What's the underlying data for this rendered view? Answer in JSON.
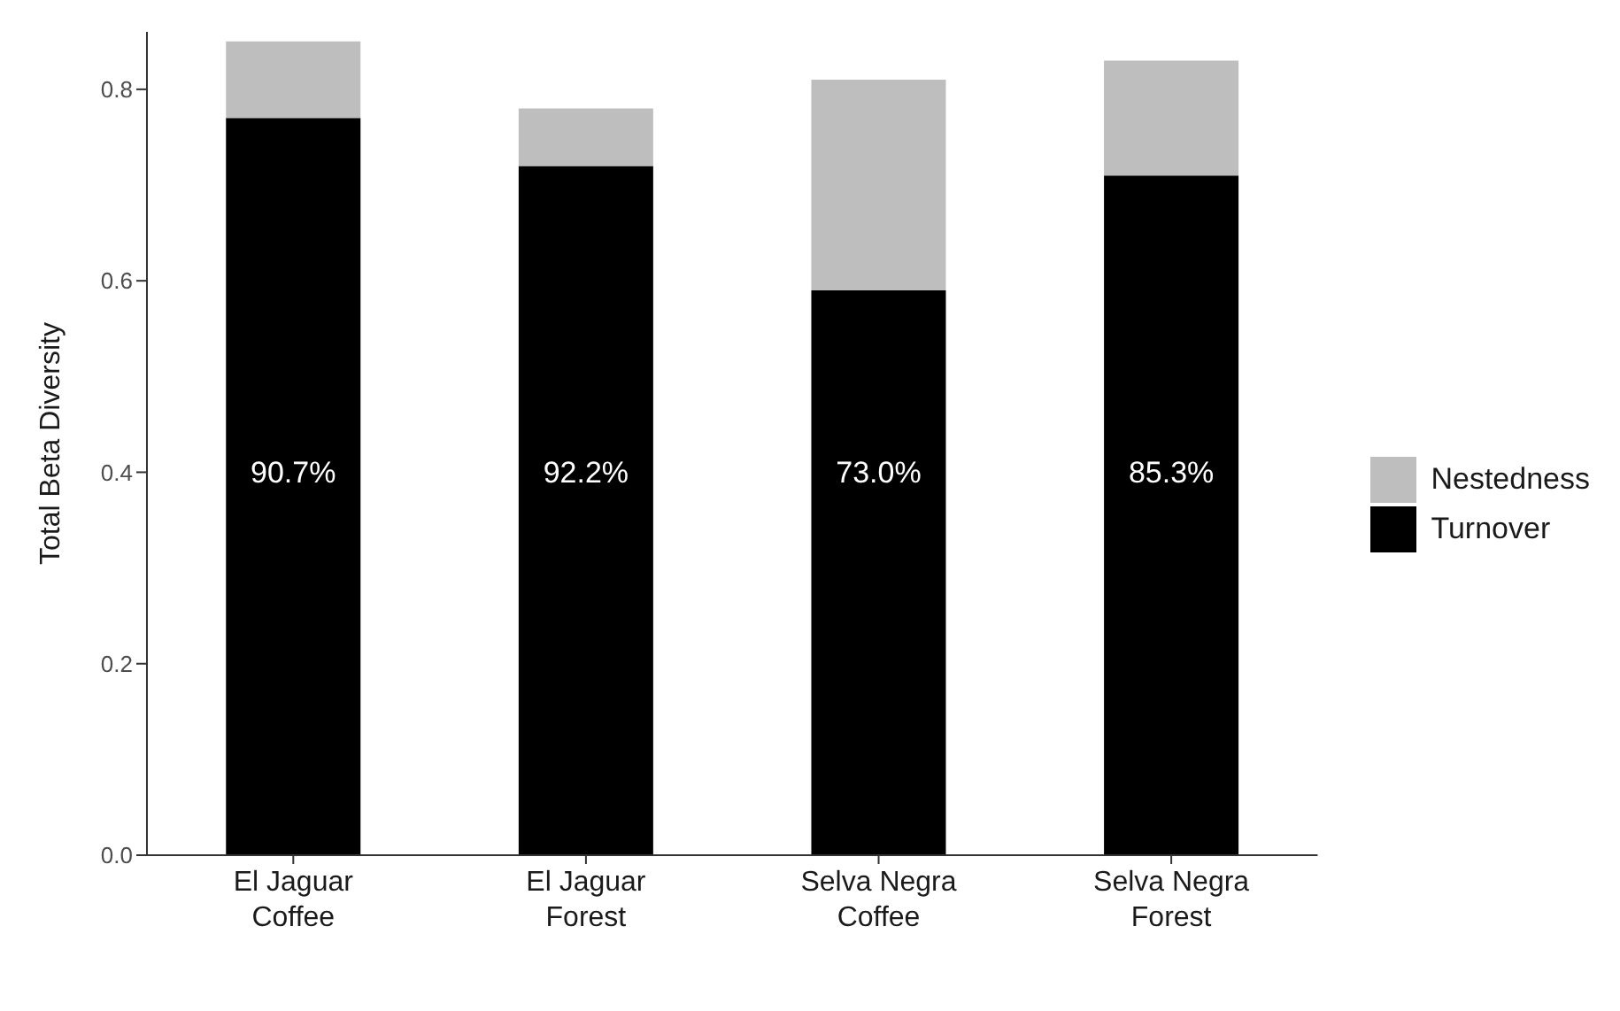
{
  "chart_data": {
    "type": "bar",
    "stacked": true,
    "ylabel": "Total Beta Diversity",
    "categories": [
      "El Jaguar\nCoffee",
      "El Jaguar\nForest",
      "Selva Negra\nCoffee",
      "Selva Negra\nForest"
    ],
    "series": [
      {
        "name": "Turnover",
        "color": "#000000",
        "values": [
          0.77,
          0.72,
          0.59,
          0.71
        ]
      },
      {
        "name": "Nestedness",
        "color": "#bebebe",
        "values": [
          0.08,
          0.06,
          0.22,
          0.12
        ]
      }
    ],
    "ylim": [
      0,
      0.86
    ],
    "yticks": [
      {
        "value": 0,
        "label": "0.0"
      },
      {
        "value": 0.2,
        "label": "0.2"
      },
      {
        "value": 0.4,
        "label": "0.4"
      },
      {
        "value": 0.6,
        "label": "0.6"
      },
      {
        "value": 0.8,
        "label": "0.8"
      }
    ],
    "grid": false,
    "legend": "right",
    "annotations": [
      "90.7%",
      "92.2%",
      "73.0%",
      "85.3%"
    ]
  }
}
